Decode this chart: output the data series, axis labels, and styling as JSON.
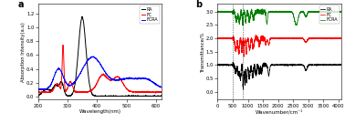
{
  "panel_a": {
    "title": "a",
    "xlabel": "Wavelength(nm)",
    "ylabel": "Absorption Intensity(a.u)",
    "xlim": [
      200,
      620
    ],
    "ylim": [
      -0.05,
      1.35
    ],
    "yticks": [
      0.0,
      0.2,
      0.4,
      0.6,
      0.8,
      1.0,
      1.2
    ],
    "xticks": [
      200,
      300,
      400,
      500,
      600
    ],
    "legend": [
      "RA",
      "FC",
      "FCRA"
    ],
    "colors": [
      "black",
      "red",
      "blue"
    ]
  },
  "panel_b": {
    "title": "b",
    "xlabel": "Wavenumber/cm⁻¹",
    "ylabel": "Transmittance/%",
    "xlim": [
      0,
      4100
    ],
    "ylim": [
      -0.3,
      3.3
    ],
    "yticks": [
      0.0,
      0.5,
      1.0,
      1.5,
      2.0,
      2.5,
      3.0
    ],
    "xticks": [
      0,
      500,
      1000,
      1500,
      2000,
      2500,
      3000,
      3500,
      4000
    ],
    "legend": [
      "RA",
      "FC",
      "FCRA"
    ],
    "colors": [
      "black",
      "red",
      "green"
    ],
    "vlines": [
      500,
      830
    ]
  }
}
